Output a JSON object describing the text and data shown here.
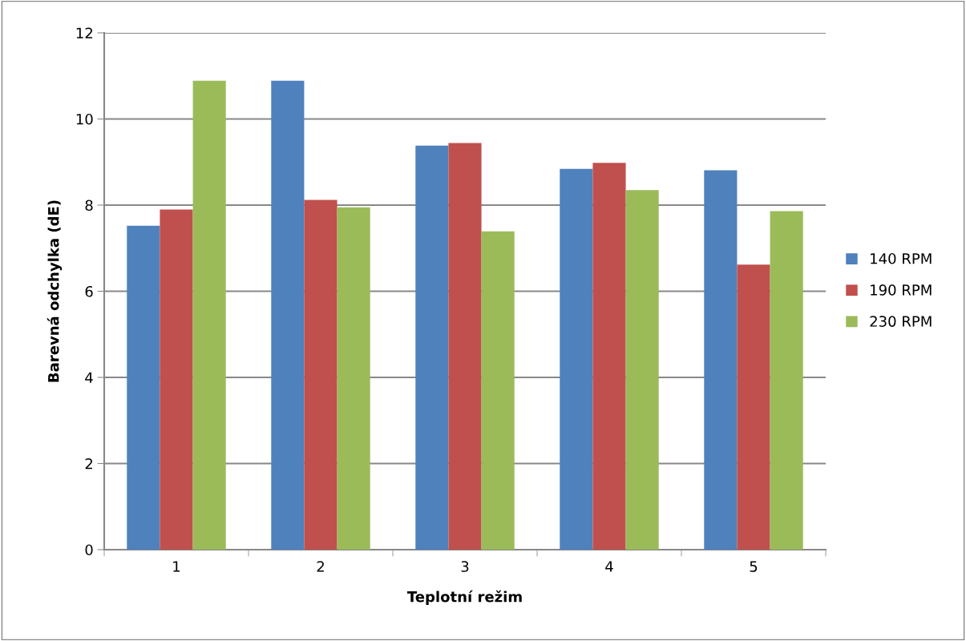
{
  "chart_data": {
    "type": "bar",
    "xlabel": "Teplotní režim",
    "ylabel": "Barevná odchylka (dE)",
    "categories": [
      "1",
      "2",
      "3",
      "4",
      "5"
    ],
    "series": [
      {
        "name": "140 RPM",
        "color": "#4f81bd",
        "values": [
          7.52,
          10.89,
          9.38,
          8.84,
          8.81
        ]
      },
      {
        "name": "190 RPM",
        "color": "#c0504d",
        "values": [
          7.9,
          8.12,
          9.44,
          8.98,
          6.62
        ]
      },
      {
        "name": "230 RPM",
        "color": "#9bbb59",
        "values": [
          10.89,
          7.95,
          7.39,
          8.35,
          7.86
        ]
      }
    ],
    "ylim": [
      0,
      12
    ],
    "yticks": [
      0,
      2,
      4,
      6,
      8,
      10,
      12
    ],
    "grid": "y",
    "legend": "right"
  }
}
